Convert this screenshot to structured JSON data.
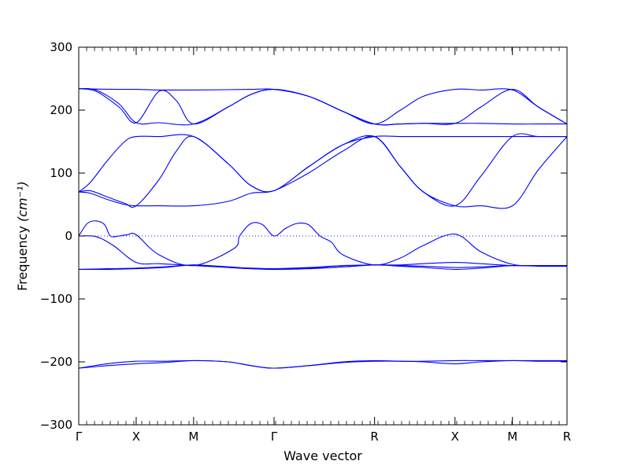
{
  "chart_data": {
    "type": "line",
    "title": "",
    "xlabel": "Wave vector",
    "ylabel": "Frequency",
    "ylabel_unit_html": "(cm⁻¹)",
    "ylim": [
      -300,
      300
    ],
    "yticks": [
      -300,
      -200,
      -100,
      0,
      100,
      200,
      300
    ],
    "xlim": [
      0,
      8.5
    ],
    "xticks": [
      {
        "x": 0,
        "label": "Γ"
      },
      {
        "x": 1.0,
        "label": "X"
      },
      {
        "x": 2.0,
        "label": "M"
      },
      {
        "x": 3.4,
        "label": "Γ"
      },
      {
        "x": 5.15,
        "label": "R"
      },
      {
        "x": 6.55,
        "label": "X"
      },
      {
        "x": 7.55,
        "label": "M"
      },
      {
        "x": 8.5,
        "label": "R"
      }
    ],
    "zero_line": true,
    "line_color": "#0000ff",
    "series": [
      {
        "x": [
          0,
          0.3,
          0.7,
          1.0,
          1.4,
          2.0,
          2.6,
          3.0,
          3.4,
          4.0,
          4.6,
          5.15,
          5.6,
          6.0,
          6.55,
          7.0,
          7.55,
          8.0,
          8.5
        ],
        "y": [
          234,
          233.5,
          233,
          233,
          232,
          232,
          232.5,
          233,
          233,
          222,
          198,
          178,
          200,
          222,
          233,
          232,
          232,
          205,
          178
        ]
      },
      {
        "x": [
          0,
          0.3,
          0.7,
          1.0,
          1.4,
          2.0,
          2.6,
          3.0,
          3.4,
          4.0,
          4.6,
          5.15,
          5.6,
          6.0,
          6.55,
          7.0,
          7.55,
          8.0,
          8.5
        ],
        "y": [
          234,
          232,
          210,
          180,
          180,
          178,
          205,
          225,
          233,
          222,
          198,
          178,
          178,
          179,
          179,
          179,
          178,
          178,
          178
        ]
      },
      {
        "x": [
          0,
          0.3,
          0.7,
          1.0,
          1.4,
          1.7,
          2.0,
          2.6,
          3.0,
          3.4,
          4.0,
          4.6,
          5.15,
          5.6,
          6.0,
          6.55,
          7.0,
          7.55,
          8.0,
          8.5
        ],
        "y": [
          234,
          230,
          205,
          180,
          230,
          215,
          178,
          205,
          225,
          233,
          222,
          198,
          178,
          178,
          179,
          179,
          205,
          233,
          205,
          178
        ]
      },
      {
        "x": [
          0,
          0.2,
          0.5,
          0.8,
          1.0,
          1.4,
          2.0,
          2.6,
          3.0,
          3.4,
          4.0,
          4.6,
          5.15,
          5.6,
          6.0,
          6.55,
          7.0,
          7.55,
          8.0,
          8.5
        ],
        "y": [
          70,
          85,
          120,
          150,
          158,
          158,
          158,
          115,
          80,
          72,
          110,
          145,
          158,
          158,
          158,
          158,
          158,
          158,
          158,
          158
        ]
      },
      {
        "x": [
          0,
          0.2,
          0.5,
          0.8,
          1.0,
          1.4,
          1.7,
          2.0,
          2.6,
          3.0,
          3.4,
          4.0,
          4.6,
          5.15,
          5.6,
          6.0,
          6.55,
          7.0,
          7.55,
          8.0,
          8.5
        ],
        "y": [
          70,
          72,
          62,
          52,
          48,
          90,
          135,
          158,
          115,
          80,
          72,
          110,
          145,
          158,
          110,
          70,
          48,
          95,
          158,
          158,
          158
        ]
      },
      {
        "x": [
          0,
          0.2,
          0.5,
          0.8,
          1.0,
          1.4,
          2.0,
          2.6,
          3.0,
          3.4,
          4.0,
          4.6,
          5.15,
          5.6,
          6.0,
          6.55,
          7.0,
          7.55,
          8.0,
          8.5
        ],
        "y": [
          70,
          68,
          58,
          50,
          48,
          48,
          48,
          55,
          68,
          72,
          100,
          135,
          158,
          110,
          70,
          48,
          48,
          48,
          105,
          158
        ]
      },
      {
        "x": [
          0,
          0.15,
          0.3,
          0.45,
          0.55,
          0.7,
          0.85,
          1.0,
          1.4,
          2.0,
          2.7,
          2.8,
          3.0,
          3.2,
          3.4,
          3.6,
          3.8,
          4.0,
          4.2,
          4.4,
          4.6,
          5.15,
          5.6,
          6.0,
          6.55,
          7.0,
          7.55,
          8.0,
          8.5
        ],
        "y": [
          0,
          20,
          24,
          18,
          0,
          0,
          2,
          2,
          -30,
          -47,
          -20,
          0,
          20,
          18,
          0,
          12,
          20,
          18,
          0,
          -10,
          -30,
          -46,
          -35,
          -15,
          3,
          -25,
          -45,
          -47,
          -47
        ]
      },
      {
        "x": [
          0,
          0.3,
          0.6,
          1.0,
          1.4,
          2.0,
          2.6,
          3.0,
          3.4,
          4.0,
          4.6,
          5.15,
          5.6,
          6.0,
          6.55,
          7.0,
          7.55,
          8.0,
          8.5
        ],
        "y": [
          0,
          -1,
          -15,
          -42,
          -44,
          -47,
          -50,
          -52,
          -52,
          -50,
          -47,
          -46,
          -46,
          -44,
          -42,
          -44,
          -47,
          -47,
          -47
        ]
      },
      {
        "x": [
          0,
          0.5,
          1.0,
          1.5,
          2.0,
          2.6,
          3.0,
          3.4,
          4.0,
          4.6,
          5.15,
          5.6,
          6.0,
          6.55,
          7.0,
          7.55,
          8.0,
          8.5
        ],
        "y": [
          -53,
          -52,
          -51,
          -49,
          -46,
          -49,
          -51,
          -52,
          -51,
          -49,
          -46,
          -47,
          -48,
          -50,
          -49,
          -47,
          -47,
          -47
        ]
      },
      {
        "x": [
          0,
          0.5,
          1.0,
          1.5,
          2.0,
          2.6,
          3.0,
          3.4,
          4.0,
          4.6,
          5.15,
          5.6,
          6.0,
          6.55,
          7.0,
          7.55,
          8.0,
          8.5
        ],
        "y": [
          -53,
          -53,
          -52,
          -50,
          -46,
          -50,
          -52,
          -53,
          -52,
          -49,
          -46,
          -48,
          -50,
          -53,
          -51,
          -47,
          -48,
          -48
        ]
      },
      {
        "x": [
          0,
          0.5,
          1.0,
          1.5,
          2.0,
          2.6,
          3.0,
          3.4,
          4.0,
          4.6,
          5.15,
          5.6,
          6.0,
          6.55,
          7.0,
          7.55,
          8.0,
          8.5
        ],
        "y": [
          -210,
          -203,
          -199,
          -199,
          -198,
          -200,
          -206,
          -210,
          -206,
          -200,
          -198,
          -199,
          -199,
          -198,
          -198,
          -198,
          -198,
          -198
        ]
      },
      {
        "x": [
          0,
          0.5,
          1.0,
          1.5,
          2.0,
          2.6,
          3.0,
          3.4,
          4.0,
          4.6,
          5.15,
          5.6,
          6.0,
          6.55,
          7.0,
          7.55,
          8.0,
          8.5
        ],
        "y": [
          -210,
          -206,
          -203,
          -201,
          -198,
          -200,
          -206,
          -210,
          -206,
          -201,
          -199,
          -199,
          -200,
          -203,
          -200,
          -198,
          -199,
          -199
        ]
      }
    ]
  }
}
